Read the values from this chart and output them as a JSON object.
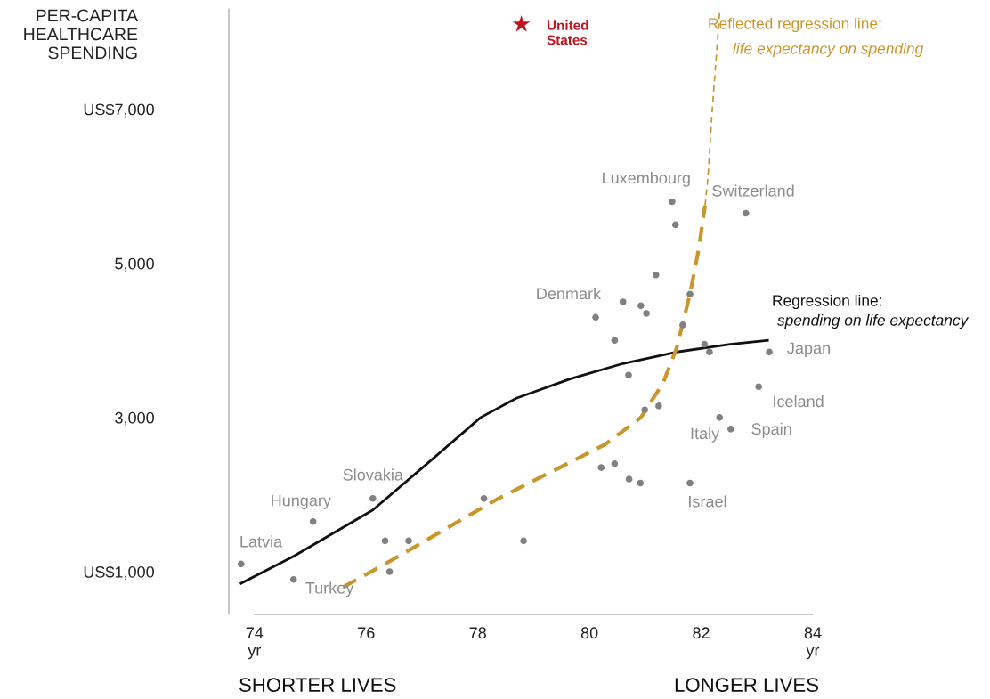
{
  "chart_data": {
    "type": "scatter",
    "ylabel": "PER-CAPITA\nHEALTHCARE\nSPENDING",
    "xlim": [
      73.54,
      84.08
    ],
    "ylim": [
      446,
      8300
    ],
    "xticks": [
      {
        "value": 74,
        "label": "74\nyr"
      },
      76,
      78,
      80,
      82,
      {
        "value": 84,
        "label": "84\nyr"
      }
    ],
    "yticks": [
      {
        "value": 1000,
        "label": "US$1,000"
      },
      {
        "value": 3000,
        "label": "3,000"
      },
      {
        "value": 5000,
        "label": "5,000"
      },
      {
        "value": 7000,
        "label": "US$7,000"
      }
    ],
    "grid": false,
    "legend": false,
    "series": [
      {
        "marker": "circle",
        "color": "#808080",
        "x": [
          73.76,
          74.7,
          75.05,
          76.12,
          76.34,
          76.42,
          76.76,
          78.11,
          78.82,
          80.11,
          80.21,
          80.45,
          80.45,
          80.6,
          80.7,
          80.71,
          80.91,
          80.92,
          81.02,
          80.99,
          81.19,
          81.24,
          81.48,
          81.54,
          81.67,
          81.8,
          81.8,
          82.06,
          82.15,
          82.33,
          82.53,
          82.8,
          83.03,
          83.22
        ],
        "values": [
          1100,
          900,
          1650,
          1950,
          1400,
          1000,
          1400,
          1950,
          1400,
          4300,
          2350,
          2400,
          4000,
          4500,
          3550,
          2200,
          2150,
          4450,
          4350,
          3100,
          4850,
          3150,
          5800,
          5500,
          4200,
          4600,
          2150,
          3950,
          3850,
          3000,
          2850,
          5650,
          3400,
          3850
        ]
      },
      {
        "marker": "star",
        "color": "#c0141e",
        "x": [
          78.78
        ],
        "values": [
          8100
        ]
      },
      {
        "type": "line",
        "line_style": "solid",
        "marker": "none",
        "color": "#111111",
        "x": [
          73.76,
          74.7,
          76.12,
          77.09,
          78.05,
          78.69,
          79.65,
          80.6,
          81.56,
          82.52,
          83.19
        ],
        "values": [
          850,
          1200,
          1800,
          2400,
          3000,
          3250,
          3500,
          3700,
          3850,
          3950,
          4000
        ]
      },
      {
        "type": "line",
        "line_style": "dashed",
        "marker": "none",
        "color": "#c8962a",
        "x": [
          75.59,
          76.46,
          77.41,
          78.37,
          79.33,
          80.28,
          80.92,
          81.32,
          81.56,
          81.8,
          81.96,
          82.07
        ],
        "values": [
          800,
          1150,
          1550,
          1950,
          2300,
          2650,
          3000,
          3450,
          3900,
          4600,
          5200,
          5750
        ]
      },
      {
        "type": "line",
        "line_style": "dashed",
        "marker": "none",
        "color": "#c8962a",
        "x": [
          82.07,
          82.12,
          82.2,
          82.33
        ],
        "values": [
          5750,
          6100,
          7000,
          8250
        ]
      }
    ],
    "annotations": [
      {
        "text": "Latvia",
        "x": 73.76,
        "y": 1100
      },
      {
        "text": "Turkey",
        "x": 74.7,
        "y": 900
      },
      {
        "text": "Hungary",
        "x": 75.05,
        "y": 1650
      },
      {
        "text": "Slovakia",
        "x": 76.12,
        "y": 1950
      },
      {
        "text": "Denmark",
        "x": 80.11,
        "y": 4300
      },
      {
        "text": "Luxembourg",
        "x": 81.48,
        "y": 5800
      },
      {
        "text": "Switzerland",
        "x": 82.8,
        "y": 5650
      },
      {
        "text": "Japan",
        "x": 83.22,
        "y": 3850
      },
      {
        "text": "Iceland",
        "x": 83.03,
        "y": 3400
      },
      {
        "text": "Italy",
        "x": 82.33,
        "y": 3000
      },
      {
        "text": "Spain",
        "x": 82.53,
        "y": 2850
      },
      {
        "text": "Israel",
        "x": 81.8,
        "y": 2150
      },
      "United\nStates",
      "Reflected regression line:",
      "life expectancy on spending",
      "Regression line:",
      "spending on life expectancy",
      "SHORTER LIVES",
      "LONGER LIVES"
    ]
  }
}
